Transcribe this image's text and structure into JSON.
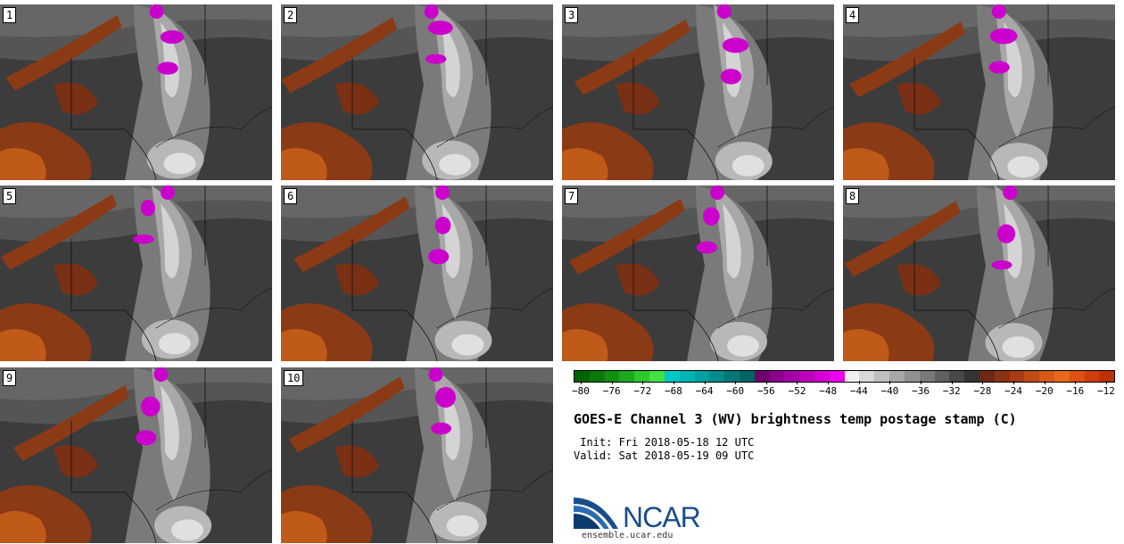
{
  "panels": [
    {
      "label": "1"
    },
    {
      "label": "2"
    },
    {
      "label": "3"
    },
    {
      "label": "4"
    },
    {
      "label": "5"
    },
    {
      "label": "6"
    },
    {
      "label": "7"
    },
    {
      "label": "8"
    },
    {
      "label": "9"
    },
    {
      "label": "10"
    }
  ],
  "colorbar": {
    "colors": [
      "#006400",
      "#0a780a",
      "#14900f",
      "#1ea81e",
      "#2cc82c",
      "#44e044",
      "#00c8c8",
      "#00b4b4",
      "#00a0a0",
      "#008c8c",
      "#007878",
      "#006464",
      "#6e006e",
      "#8c008c",
      "#a400a4",
      "#bc00bc",
      "#d400d4",
      "#ee00ee",
      "#f0f0f0",
      "#d8d8d8",
      "#c0c0c0",
      "#a8a8a8",
      "#909090",
      "#787878",
      "#606060",
      "#484848",
      "#333333",
      "#6e2814",
      "#8c3214",
      "#a83c14",
      "#c04a14",
      "#d8581a",
      "#e8681c",
      "#e05010",
      "#d03c0c",
      "#c03008"
    ],
    "ticks": [
      "−80",
      "−76",
      "−72",
      "−68",
      "−64",
      "−60",
      "−56",
      "−52",
      "−48",
      "−44",
      "−40",
      "−36",
      "−32",
      "−28",
      "−24",
      "−20",
      "−16",
      "−12"
    ]
  },
  "title": "GOES-E Channel 3 (WV) brightness temp postage stamp (C)",
  "init_line": " Init: Fri 2018-05-18 12 UTC",
  "valid_line": "Valid: Sat 2018-05-19 09 UTC",
  "logo_text": "NCAR",
  "url": "ensemble.ucar.edu"
}
